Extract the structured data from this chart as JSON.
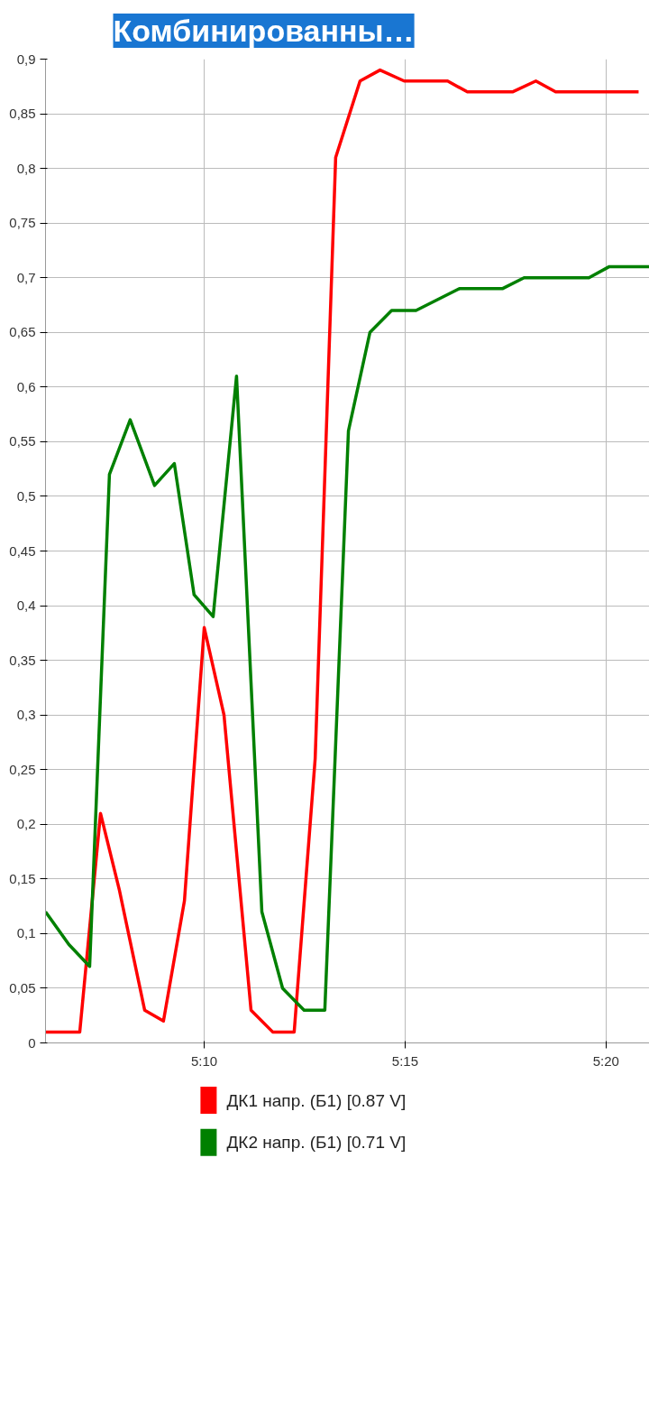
{
  "chart_data": {
    "type": "line",
    "title": "Комбинированны…",
    "legend": "bottom",
    "grid": true,
    "line_style": "solid",
    "marker": "none",
    "xlim": [
      5.1009,
      5.3513
    ],
    "xticks": [
      {
        "value": 5.1667,
        "label": "5:10"
      },
      {
        "value": 5.25,
        "label": "5:15"
      },
      {
        "value": 5.3333,
        "label": "5:20"
      }
    ],
    "ylim": [
      0,
      0.9
    ],
    "yticks": [
      0,
      {
        "value": 0.05,
        "label": "0,05"
      },
      {
        "value": 0.1,
        "label": "0,1"
      },
      {
        "value": 0.15,
        "label": "0,15"
      },
      {
        "value": 0.2,
        "label": "0,2"
      },
      {
        "value": 0.25,
        "label": "0,25"
      },
      {
        "value": 0.3,
        "label": "0,3"
      },
      {
        "value": 0.35,
        "label": "0,35"
      },
      {
        "value": 0.4,
        "label": "0,4"
      },
      {
        "value": 0.45,
        "label": "0,45"
      },
      {
        "value": 0.5,
        "label": "0,5"
      },
      {
        "value": 0.55,
        "label": "0,55"
      },
      {
        "value": 0.6,
        "label": "0,6"
      },
      {
        "value": 0.65,
        "label": "0,65"
      },
      {
        "value": 0.7,
        "label": "0,7"
      },
      {
        "value": 0.75,
        "label": "0,75"
      },
      {
        "value": 0.8,
        "label": "0,8"
      },
      {
        "value": 0.85,
        "label": "0,85"
      },
      {
        "value": 0.9,
        "label": "0,9"
      }
    ],
    "series": [
      {
        "name": "ДК1 напр. (Б1) [0.87 V]",
        "color": "#ff0000",
        "x": [
          5.1009,
          5.1151,
          5.1237,
          5.1315,
          5.142,
          5.1498,
          5.1585,
          5.1667,
          5.1749,
          5.1861,
          5.1951,
          5.204,
          5.2127,
          5.2212,
          5.2313,
          5.2396,
          5.2496,
          5.2676,
          5.2758,
          5.2945,
          5.3042,
          5.3124,
          5.3468
        ],
        "values": [
          0.01,
          0.01,
          0.21,
          0.14,
          0.03,
          0.02,
          0.13,
          0.38,
          0.3,
          0.03,
          0.01,
          0.01,
          0.26,
          0.81,
          0.88,
          0.89,
          0.88,
          0.88,
          0.87,
          0.87,
          0.88,
          0.87,
          0.87
        ]
      },
      {
        "name": "ДК2 напр. (Б1) [0.71 V]",
        "color": "#008000",
        "x": [
          5.1009,
          5.1106,
          5.1192,
          5.1274,
          5.136,
          5.1461,
          5.1543,
          5.1625,
          5.1704,
          5.1801,
          5.1906,
          5.1992,
          5.2081,
          5.2167,
          5.2265,
          5.2354,
          5.2444,
          5.2545,
          5.2725,
          5.2903,
          5.2993,
          5.3262,
          5.3345,
          5.3513
        ],
        "values": [
          0.12,
          0.09,
          0.07,
          0.52,
          0.57,
          0.51,
          0.53,
          0.41,
          0.39,
          0.61,
          0.12,
          0.05,
          0.03,
          0.03,
          0.56,
          0.65,
          0.67,
          0.67,
          0.69,
          0.69,
          0.7,
          0.7,
          0.71,
          0.71
        ]
      }
    ]
  }
}
